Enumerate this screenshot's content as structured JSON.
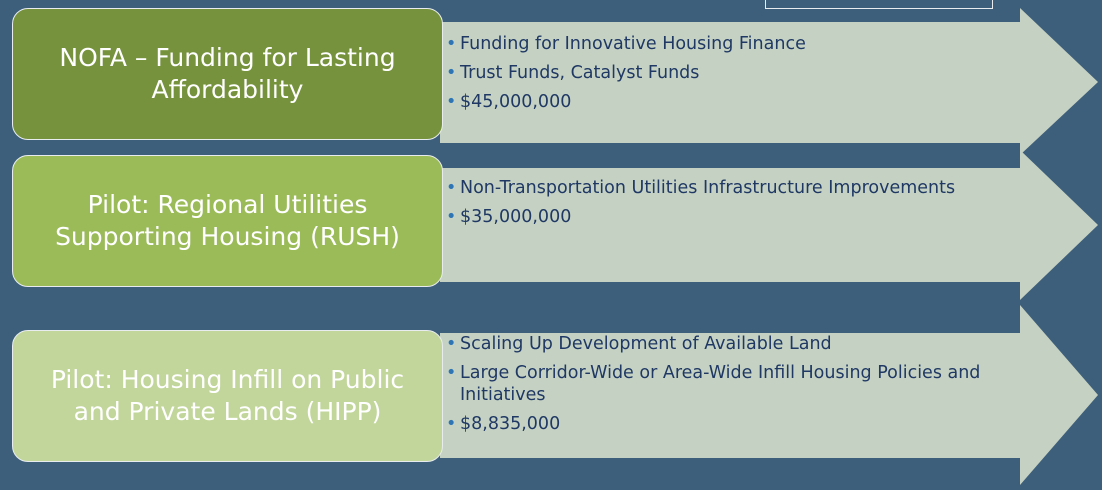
{
  "rows": [
    {
      "label": "NOFA – Funding for Lasting Affordability",
      "bullets": [
        "Funding for Innovative Housing Finance",
        "Trust Funds, Catalyst Funds",
        "$45,000,000"
      ]
    },
    {
      "label": "Pilot: Regional Utilities Supporting Housing (RUSH)",
      "bullets": [
        "Non-Transportation Utilities Infrastructure Improvements",
        "$35,000,000"
      ]
    },
    {
      "label": "Pilot: Housing Infill on Public and Private Lands (HIPP)",
      "bullets": [
        "Scaling Up Development of Available Land",
        "Large Corridor-Wide or Area-Wide Infill Housing Policies and Initiatives",
        "$8,835,000"
      ]
    }
  ]
}
